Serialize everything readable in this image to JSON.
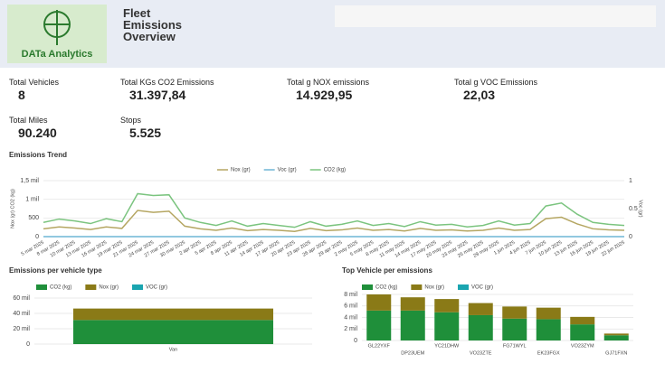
{
  "header": {
    "logo_text": "DATa Analytics",
    "title": "Fleet Emissions Overview"
  },
  "kpis": [
    {
      "label": "Total Vehicles",
      "value": "8"
    },
    {
      "label": "Total KGs CO2 Emissions",
      "value": "31.397,84"
    },
    {
      "label": "Total g NOX emissions",
      "value": "14.929,95"
    },
    {
      "label": "Total g VOC Emissions",
      "value": "22,03"
    },
    {
      "label": "Total Miles",
      "value": "90.240"
    },
    {
      "label": "Stops",
      "value": "5.525"
    }
  ],
  "chart_data": [
    {
      "type": "line",
      "title": "Emissions Trend",
      "y_label": "Nox (gr) CO2 (kg)",
      "y2_label": "Voc (gr)",
      "categories": [
        "5 mar 2025",
        "8 mar 2025",
        "10 mar 2025",
        "13 mar 2025",
        "16 mar 2025",
        "19 mar 2025",
        "21 mar 2025",
        "24 mar 2025",
        "27 mar 2025",
        "30 mar 2025",
        "2 apr 2025",
        "5 apr 2025",
        "8 apr 2025",
        "11 apr 2025",
        "14 apr 2025",
        "17 apr 2025",
        "20 apr 2025",
        "23 apr 2025",
        "26 apr 2025",
        "29 apr 2025",
        "2 may 2025",
        "5 may 2025",
        "8 may 2025",
        "11 may 2025",
        "14 may 2025",
        "17 may 2025",
        "20 may 2025",
        "23 may 2025",
        "26 may 2025",
        "29 may 2025",
        "1 jun 2025",
        "4 jun 2025",
        "7 jun 2025",
        "10 jun 2025",
        "13 jun 2025",
        "16 jun 2025",
        "19 jun 2025",
        "22 jun 2025"
      ],
      "series": [
        {
          "name": "Nox (gr)",
          "color": "#b5a662",
          "values": [
            210,
            260,
            230,
            190,
            260,
            220,
            700,
            650,
            680,
            280,
            210,
            170,
            230,
            160,
            190,
            170,
            140,
            220,
            160,
            180,
            230,
            170,
            190,
            150,
            220,
            170,
            180,
            150,
            170,
            230,
            170,
            190,
            480,
            520,
            340,
            210,
            180,
            170
          ]
        },
        {
          "name": "Voc (gr)",
          "color": "#6fb6d6",
          "axis": "y2",
          "values": [
            0,
            0,
            0,
            0,
            0,
            0,
            0,
            0,
            0,
            0,
            0,
            0,
            0,
            0,
            0,
            0,
            0,
            0,
            0,
            0,
            0,
            0,
            0,
            0,
            0,
            0,
            0,
            0,
            0,
            0,
            0,
            0,
            0,
            0,
            0,
            0,
            0,
            0
          ]
        },
        {
          "name": "CO2 (kg)",
          "color": "#7bc47f",
          "values": [
            380,
            470,
            420,
            350,
            480,
            400,
            1150,
            1100,
            1120,
            500,
            380,
            300,
            420,
            280,
            350,
            300,
            250,
            400,
            280,
            330,
            420,
            300,
            350,
            270,
            400,
            310,
            330,
            260,
            300,
            420,
            310,
            350,
            820,
            900,
            600,
            380,
            330,
            300
          ]
        }
      ],
      "ylim": [
        0,
        1500
      ],
      "yticks": [
        0,
        500,
        {
          "value": 1000,
          "label": "1 mil"
        },
        {
          "value": 1500,
          "label": "1,5 mil"
        }
      ],
      "y2lim": [
        0,
        1
      ],
      "y2ticks": [
        0,
        0.5,
        1
      ],
      "grid": true
    },
    {
      "type": "bar",
      "stacked": true,
      "title": "Emissions per vehicle type",
      "categories": [
        "Van"
      ],
      "series": [
        {
          "name": "CO2 (kg)",
          "color": "#1f8f3a",
          "values": [
            31398
          ]
        },
        {
          "name": "Nox (gr)",
          "color": "#8a7a17",
          "values": [
            14930
          ]
        },
        {
          "name": "VOC (gr)",
          "color": "#1aa5b0",
          "values": [
            22
          ]
        }
      ],
      "ylim": [
        0,
        60000
      ],
      "yticks": [
        0,
        {
          "value": 20000,
          "label": "20 mil"
        },
        {
          "value": 40000,
          "label": "40 mil"
        },
        {
          "value": 60000,
          "label": "60 mil"
        }
      ],
      "grid": true
    },
    {
      "type": "bar",
      "stacked": true,
      "title": "Top Vehicle per emissions",
      "categories": [
        "GL22YXF",
        "DP23UEM",
        "YC21DHW",
        "VO23ZTE",
        "FG71WYL",
        "EK23FGX",
        "VO23ZYM",
        "GJ71FXN"
      ],
      "series": [
        {
          "name": "CO2 (kg)",
          "color": "#1f8f3a",
          "values": [
            5200,
            5200,
            4900,
            4400,
            3800,
            3700,
            2800,
            900
          ]
        },
        {
          "name": "Nox (gr)",
          "color": "#8a7a17",
          "values": [
            2800,
            2300,
            2300,
            2100,
            2100,
            2000,
            1300,
            300
          ]
        },
        {
          "name": "VOC (gr)",
          "color": "#1aa5b0",
          "values": [
            2,
            2,
            2,
            2,
            2,
            2,
            1,
            1
          ]
        }
      ],
      "ylim": [
        0,
        8000
      ],
      "yticks": [
        0,
        {
          "value": 2000,
          "label": "2 mil"
        },
        {
          "value": 4000,
          "label": "4 mil"
        },
        {
          "value": 6000,
          "label": "6 mil"
        },
        {
          "value": 8000,
          "label": "8 mil"
        }
      ],
      "grid": true
    }
  ]
}
